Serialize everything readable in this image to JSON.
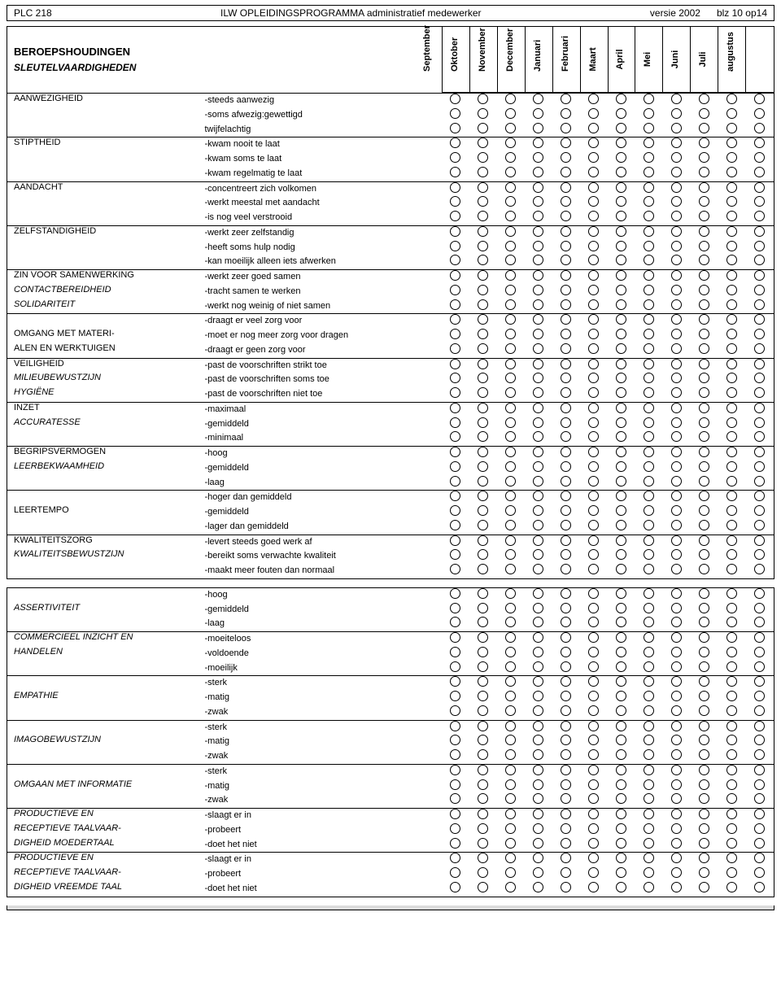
{
  "header": {
    "code": "PLC 218",
    "title": "ILW OPLEIDINGSPROGRAMMA  administratief medewerker",
    "version": "versie 2002",
    "page": "blz 10 op14"
  },
  "titles": {
    "main": "BEROEPSHOUDINGEN",
    "sub": "SLEUTELVAARDIGHEDEN"
  },
  "months": [
    "September",
    "Oktober",
    "November",
    "December",
    "Januari",
    "Februari",
    "Maart",
    "April",
    "Mei",
    "Juni",
    "Juli",
    "augustus"
  ],
  "section1": [
    {
      "cat": [
        "AANWEZIGHEID"
      ],
      "catItalic": [
        false
      ],
      "rows": [
        "-steeds aanwezig",
        "-soms afwezig:gewettigd",
        "twijfelachtig"
      ]
    },
    {
      "cat": [
        "STIPTHEID"
      ],
      "catItalic": [
        false
      ],
      "rows": [
        "-kwam nooit te laat",
        "-kwam soms te laat",
        "-kwam regelmatig te laat"
      ]
    },
    {
      "cat": [
        "AANDACHT"
      ],
      "catItalic": [
        false
      ],
      "rows": [
        "-concentreert zich volkomen",
        "-werkt meestal met aandacht",
        "-is nog veel verstrooid"
      ]
    },
    {
      "cat": [
        "ZELFSTANDIGHEID"
      ],
      "catItalic": [
        false
      ],
      "rows": [
        "-werkt zeer zelfstandig",
        "-heeft soms hulp nodig",
        "-kan moeilijk alleen iets afwerken"
      ]
    },
    {
      "cat": [
        "ZIN VOOR SAMENWERKING",
        "CONTACTBEREIDHEID",
        "SOLIDARITEIT"
      ],
      "catItalic": [
        false,
        true,
        true
      ],
      "rows": [
        "-werkt zeer goed samen",
        "-tracht samen te werken",
        "-werkt nog weinig of niet samen"
      ]
    },
    {
      "cat": [
        "",
        "OMGANG MET MATERI-",
        "ALEN EN WERKTUIGEN"
      ],
      "catItalic": [
        false,
        false,
        false
      ],
      "rows": [
        "-draagt er veel zorg voor",
        "-moet er nog meer zorg voor dragen",
        "-draagt er geen zorg voor"
      ]
    },
    {
      "cat": [
        "VEILIGHEID",
        "MILIEUBEWUSTZIJN",
        "HYGIËNE"
      ],
      "catItalic": [
        false,
        true,
        true
      ],
      "rows": [
        "-past de voorschriften strikt toe",
        "-past de voorschriften soms toe",
        "-past de voorschriften niet toe"
      ]
    },
    {
      "cat": [
        "INZET",
        "ACCURATESSE"
      ],
      "catItalic": [
        false,
        true
      ],
      "rows": [
        "-maximaal",
        "-gemiddeld",
        "-minimaal"
      ]
    },
    {
      "cat": [
        "BEGRIPSVERMOGEN",
        "LEERBEKWAAMHEID"
      ],
      "catItalic": [
        false,
        true
      ],
      "rows": [
        "-hoog",
        "-gemiddeld",
        "-laag"
      ]
    },
    {
      "cat": [
        "",
        "LEERTEMPO"
      ],
      "catItalic": [
        false,
        false
      ],
      "rows": [
        "-hoger dan gemiddeld",
        "-gemiddeld",
        "-lager dan gemiddeld"
      ]
    },
    {
      "cat": [
        "KWALITEITSZORG",
        "KWALITEITSBEWUSTZIJN"
      ],
      "catItalic": [
        false,
        true
      ],
      "rows": [
        "-levert steeds goed werk af",
        "-bereikt soms verwachte kwaliteit",
        "-maakt meer fouten dan normaal"
      ]
    }
  ],
  "section2": [
    {
      "cat": [
        "",
        "ASSERTIVITEIT"
      ],
      "catItalic": [
        false,
        true
      ],
      "rows": [
        "-hoog",
        "-gemiddeld",
        "-laag"
      ]
    },
    {
      "cat": [
        "COMMERCIEEL INZICHT EN",
        "HANDELEN"
      ],
      "catItalic": [
        true,
        true
      ],
      "rows": [
        "-moeiteloos",
        "-voldoende",
        "-moeilijk"
      ]
    },
    {
      "cat": [
        "",
        "EMPATHIE"
      ],
      "catItalic": [
        false,
        true
      ],
      "rows": [
        "-sterk",
        "-matig",
        "-zwak"
      ]
    },
    {
      "cat": [
        "",
        "IMAGOBEWUSTZIJN"
      ],
      "catItalic": [
        false,
        true
      ],
      "rows": [
        "-sterk",
        "-matig",
        "-zwak"
      ]
    },
    {
      "cat": [
        "",
        "OMGAAN MET INFORMATIE"
      ],
      "catItalic": [
        false,
        true
      ],
      "rows": [
        "-sterk",
        "-matig",
        "-zwak"
      ]
    },
    {
      "cat": [
        "PRODUCTIEVE EN",
        "RECEPTIEVE TAALVAAR-",
        "DIGHEID MOEDERTAAL"
      ],
      "catItalic": [
        true,
        true,
        true
      ],
      "rows": [
        "-slaagt er in",
        "-probeert",
        "-doet het niet"
      ]
    },
    {
      "cat": [
        "PRODUCTIEVE EN",
        "RECEPTIEVE TAALVAAR-",
        "DIGHEID VREEMDE TAAL"
      ],
      "catItalic": [
        true,
        true,
        true
      ],
      "rows": [
        "-slaagt er in",
        "-probeert",
        "-doet het niet"
      ]
    }
  ],
  "style": {
    "circle_border": "#000000",
    "font_family": "Arial",
    "font_size_body": 11,
    "font_size_title": 13,
    "background": "#ffffff"
  }
}
